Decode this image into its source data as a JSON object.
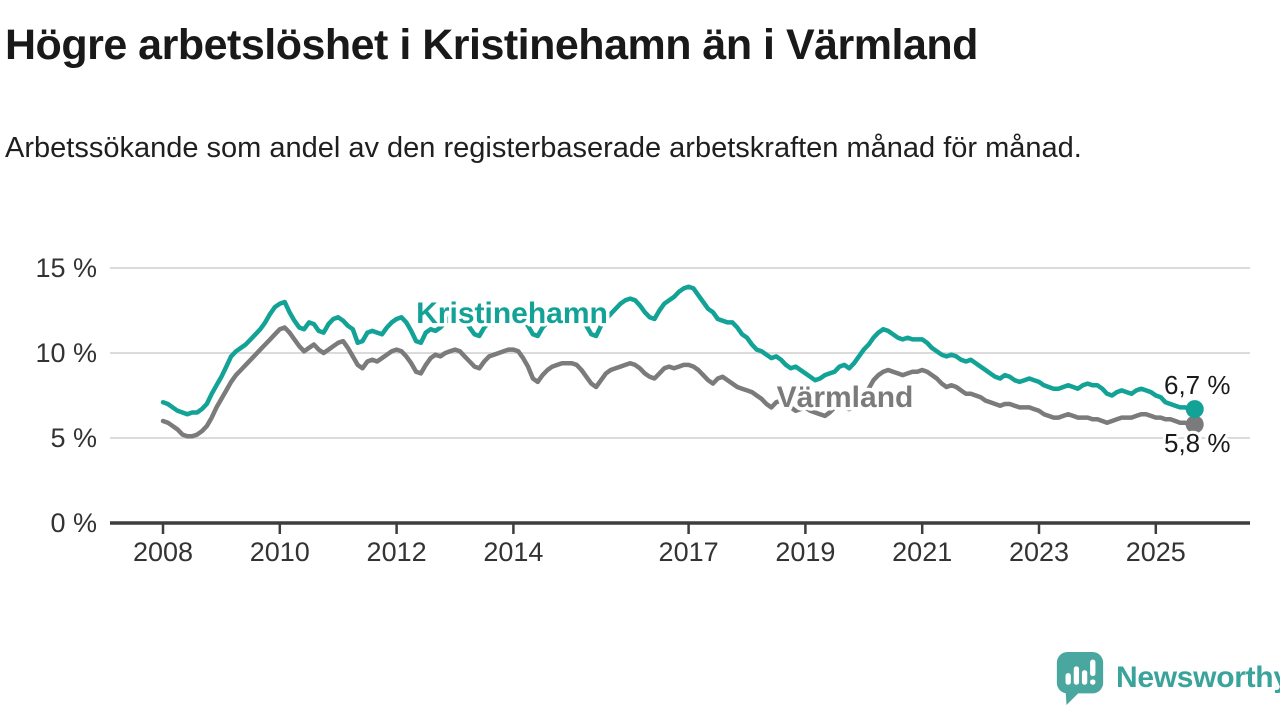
{
  "chart_data": {
    "type": "line",
    "title": "Högre arbetslöshet i Kristinehamn än i Värmland",
    "subtitle": "Arbetssökande som andel av den registerbaserade arbetskraften månad för månad.",
    "unit": "%",
    "frequency": "monthly",
    "x_start": "2008-01",
    "x_end": "2025-09",
    "grid": "horizontal",
    "legend_position": "inline-labels",
    "y_axis": {
      "range": [
        0,
        16.5
      ],
      "ticks": [
        {
          "value": 0,
          "label": "0 %"
        },
        {
          "value": 5,
          "label": "5 %"
        },
        {
          "value": 10,
          "label": "10 %"
        },
        {
          "value": 15,
          "label": "15 %"
        }
      ]
    },
    "x_axis": {
      "ticks": [
        {
          "value": 2008,
          "label": "2008"
        },
        {
          "value": 2010,
          "label": "2010"
        },
        {
          "value": 2012,
          "label": "2012"
        },
        {
          "value": 2014,
          "label": "2014"
        },
        {
          "value": 2017,
          "label": "2017"
        },
        {
          "value": 2019,
          "label": "2019"
        },
        {
          "value": 2021,
          "label": "2021"
        },
        {
          "value": 2023,
          "label": "2023"
        },
        {
          "value": 2025,
          "label": "2025"
        }
      ]
    },
    "series": [
      {
        "name": "Kristinehamn",
        "color": "#12a296",
        "end_label": "6,7 %",
        "last_value": 6.7,
        "values": [
          7.1,
          7.0,
          6.8,
          6.6,
          6.5,
          6.4,
          6.5,
          6.5,
          6.7,
          7.0,
          7.6,
          8.1,
          8.6,
          9.2,
          9.8,
          10.1,
          10.3,
          10.5,
          10.8,
          11.1,
          11.4,
          11.8,
          12.3,
          12.7,
          12.9,
          13.0,
          12.4,
          11.9,
          11.5,
          11.4,
          11.8,
          11.7,
          11.3,
          11.2,
          11.7,
          12.0,
          12.1,
          11.9,
          11.6,
          11.4,
          10.6,
          10.7,
          11.2,
          11.3,
          11.2,
          11.1,
          11.5,
          11.8,
          12.0,
          12.1,
          11.8,
          11.3,
          10.7,
          10.6,
          11.2,
          11.4,
          11.3,
          11.5,
          11.8,
          12.1,
          12.3,
          12.2,
          11.9,
          11.5,
          11.1,
          11.0,
          11.5,
          11.8,
          11.7,
          11.9,
          12.1,
          12.3,
          12.4,
          12.3,
          12.0,
          11.6,
          11.1,
          11.0,
          11.5,
          11.8,
          11.7,
          11.8,
          12.0,
          12.2,
          12.3,
          12.2,
          11.9,
          11.6,
          11.1,
          11.0,
          11.6,
          12.0,
          12.3,
          12.6,
          12.9,
          13.1,
          13.2,
          13.1,
          12.8,
          12.4,
          12.1,
          12.0,
          12.5,
          12.9,
          13.1,
          13.3,
          13.6,
          13.8,
          13.9,
          13.8,
          13.4,
          13.0,
          12.6,
          12.4,
          12.0,
          11.9,
          11.8,
          11.8,
          11.5,
          11.1,
          10.9,
          10.5,
          10.2,
          10.1,
          9.9,
          9.7,
          9.8,
          9.6,
          9.3,
          9.1,
          9.2,
          9.0,
          8.8,
          8.6,
          8.4,
          8.5,
          8.7,
          8.8,
          8.9,
          9.2,
          9.3,
          9.1,
          9.4,
          9.8,
          10.2,
          10.5,
          10.9,
          11.2,
          11.4,
          11.3,
          11.1,
          10.9,
          10.8,
          10.9,
          10.8,
          10.8,
          10.8,
          10.6,
          10.3,
          10.1,
          9.9,
          9.8,
          9.9,
          9.8,
          9.6,
          9.5,
          9.6,
          9.4,
          9.2,
          9.0,
          8.8,
          8.6,
          8.5,
          8.7,
          8.6,
          8.4,
          8.3,
          8.4,
          8.5,
          8.4,
          8.3,
          8.1,
          8.0,
          7.9,
          7.9,
          8.0,
          8.1,
          8.0,
          7.9,
          8.1,
          8.2,
          8.1,
          8.1,
          7.9,
          7.6,
          7.5,
          7.7,
          7.8,
          7.7,
          7.6,
          7.8,
          7.9,
          7.8,
          7.7,
          7.5,
          7.4,
          7.1,
          7.0,
          6.9,
          6.8,
          6.8,
          6.7,
          6.7
        ]
      },
      {
        "name": "Värmland",
        "color": "#7b7b7b",
        "end_label": "5,8 %",
        "last_value": 5.8,
        "values": [
          6.0,
          5.9,
          5.7,
          5.5,
          5.2,
          5.1,
          5.1,
          5.2,
          5.4,
          5.7,
          6.2,
          6.8,
          7.3,
          7.8,
          8.3,
          8.7,
          9.0,
          9.3,
          9.6,
          9.9,
          10.2,
          10.5,
          10.8,
          11.1,
          11.4,
          11.5,
          11.2,
          10.8,
          10.4,
          10.1,
          10.3,
          10.5,
          10.2,
          10.0,
          10.2,
          10.4,
          10.6,
          10.7,
          10.3,
          9.8,
          9.3,
          9.1,
          9.5,
          9.6,
          9.5,
          9.7,
          9.9,
          10.1,
          10.2,
          10.1,
          9.8,
          9.4,
          8.9,
          8.8,
          9.3,
          9.7,
          9.9,
          9.8,
          10.0,
          10.1,
          10.2,
          10.1,
          9.8,
          9.5,
          9.2,
          9.1,
          9.5,
          9.8,
          9.9,
          10.0,
          10.1,
          10.2,
          10.2,
          10.1,
          9.7,
          9.2,
          8.5,
          8.3,
          8.7,
          9.0,
          9.2,
          9.3,
          9.4,
          9.4,
          9.4,
          9.3,
          9.0,
          8.6,
          8.2,
          8.0,
          8.4,
          8.8,
          9.0,
          9.1,
          9.2,
          9.3,
          9.4,
          9.3,
          9.1,
          8.8,
          8.6,
          8.5,
          8.8,
          9.1,
          9.2,
          9.1,
          9.2,
          9.3,
          9.3,
          9.2,
          9.0,
          8.7,
          8.4,
          8.2,
          8.5,
          8.6,
          8.4,
          8.2,
          8.0,
          7.9,
          7.8,
          7.7,
          7.5,
          7.3,
          7.0,
          6.8,
          7.1,
          7.2,
          7.0,
          6.8,
          6.6,
          6.7,
          6.8,
          6.6,
          6.5,
          6.4,
          6.3,
          6.5,
          6.8,
          6.9,
          6.8,
          6.7,
          6.9,
          7.2,
          7.6,
          7.9,
          8.4,
          8.7,
          8.9,
          9.0,
          8.9,
          8.8,
          8.7,
          8.8,
          8.9,
          8.9,
          9.0,
          8.9,
          8.7,
          8.5,
          8.2,
          8.0,
          8.1,
          8.0,
          7.8,
          7.6,
          7.6,
          7.5,
          7.4,
          7.2,
          7.1,
          7.0,
          6.9,
          7.0,
          7.0,
          6.9,
          6.8,
          6.8,
          6.8,
          6.7,
          6.6,
          6.4,
          6.3,
          6.2,
          6.2,
          6.3,
          6.4,
          6.3,
          6.2,
          6.2,
          6.2,
          6.1,
          6.1,
          6.0,
          5.9,
          6.0,
          6.1,
          6.2,
          6.2,
          6.2,
          6.3,
          6.4,
          6.4,
          6.3,
          6.2,
          6.2,
          6.1,
          6.1,
          6.0,
          5.9,
          5.9,
          5.8,
          5.8
        ]
      }
    ]
  },
  "footer": {
    "brand": "Newsworthy"
  }
}
